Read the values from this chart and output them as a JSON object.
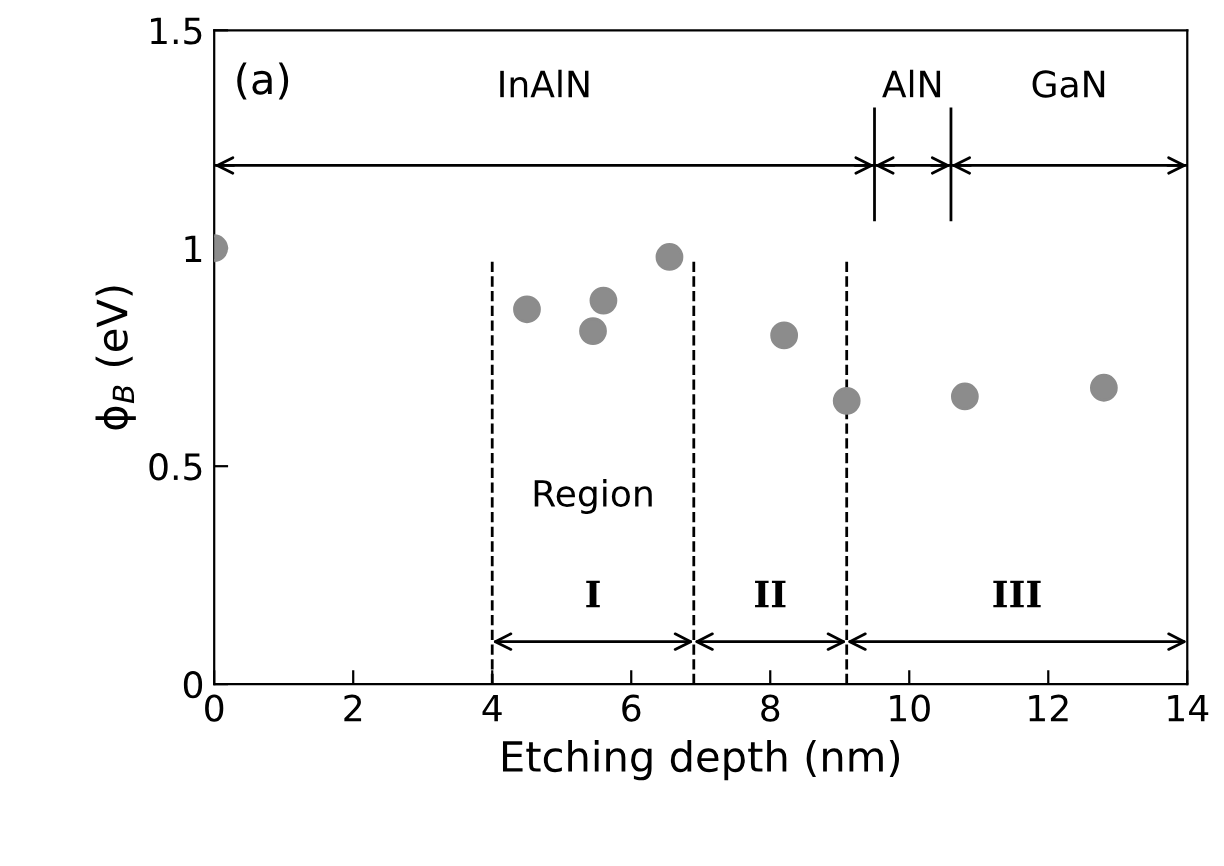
{
  "chart_data": {
    "type": "scatter",
    "xlabel": "Etching depth (nm)",
    "ylabel": "ϕ$_{B}$ (eV)",
    "x": [
      0,
      4.5,
      5.45,
      5.6,
      6.55,
      8.2,
      9.1,
      10.8,
      12.8
    ],
    "values": [
      1.0,
      0.86,
      0.81,
      0.88,
      0.98,
      0.8,
      0.65,
      0.66,
      0.68
    ],
    "color": "#8c8c8c",
    "marker": "circle",
    "grid": false,
    "xlim": [
      0,
      14
    ],
    "xticks": [
      0,
      2,
      4,
      6,
      8,
      10,
      12,
      14
    ],
    "ylim": [
      0,
      1.5
    ],
    "yticks": [
      0,
      0.5,
      1,
      1.5
    ],
    "ref_lines": [
      {
        "axis": "y",
        "value": 1.19,
        "line_style": "solid"
      },
      {
        "axis": "x",
        "value": 9.5,
        "line_style": "solid"
      },
      {
        "axis": "x",
        "value": 10.6,
        "line_style": "solid"
      },
      {
        "axis": "x",
        "value": 4,
        "line_style": "dashed"
      },
      {
        "axis": "x",
        "value": 6.9,
        "line_style": "dashed"
      },
      {
        "axis": "x",
        "value": 9.1,
        "line_style": "dashed"
      }
    ],
    "annotations": [
      "(a)",
      "InAlN",
      "AlN",
      "GaN",
      "I",
      "II",
      "III",
      "Region"
    ]
  }
}
